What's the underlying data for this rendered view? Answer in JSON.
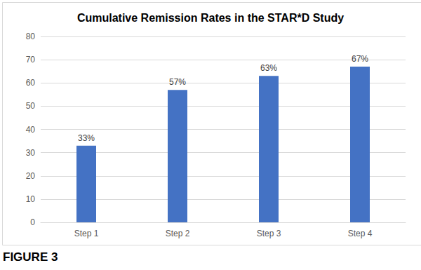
{
  "chart_data": {
    "type": "bar",
    "title": "Cumulative Remission Rates in the STAR*D Study",
    "caption": "FIGURE 3",
    "categories": [
      "Step 1",
      "Step 2",
      "Step 3",
      "Step 4"
    ],
    "values": [
      33,
      57,
      63,
      67
    ],
    "value_labels": [
      "33%",
      "57%",
      "63%",
      "67%"
    ],
    "data_labels": true,
    "color": "#4472c4",
    "ylim": [
      0,
      80
    ],
    "yticks": [
      0,
      10,
      20,
      30,
      40,
      50,
      60,
      70,
      80
    ],
    "grid": true
  }
}
